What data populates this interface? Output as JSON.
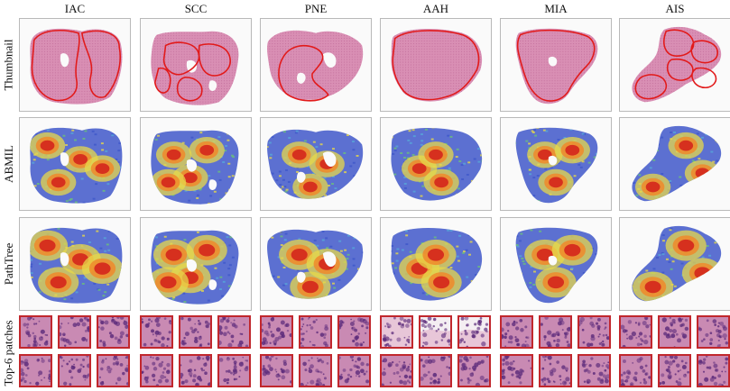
{
  "columns": [
    "IAC",
    "SCC",
    "PNE",
    "AAH",
    "MIA",
    "AIS"
  ],
  "rows": [
    "Thumbnail",
    "ABMIL",
    "PathTree",
    "Top-6 patches"
  ],
  "colors": {
    "tissue": "#d98fb4",
    "tissue_dark": "#b65b8c",
    "annotation": "#e21a1a",
    "patch_border": "#c1272d",
    "heat_low": "#3f57c9",
    "heat_mid": "#e7d84a",
    "heat_high": "#d6301e"
  }
}
